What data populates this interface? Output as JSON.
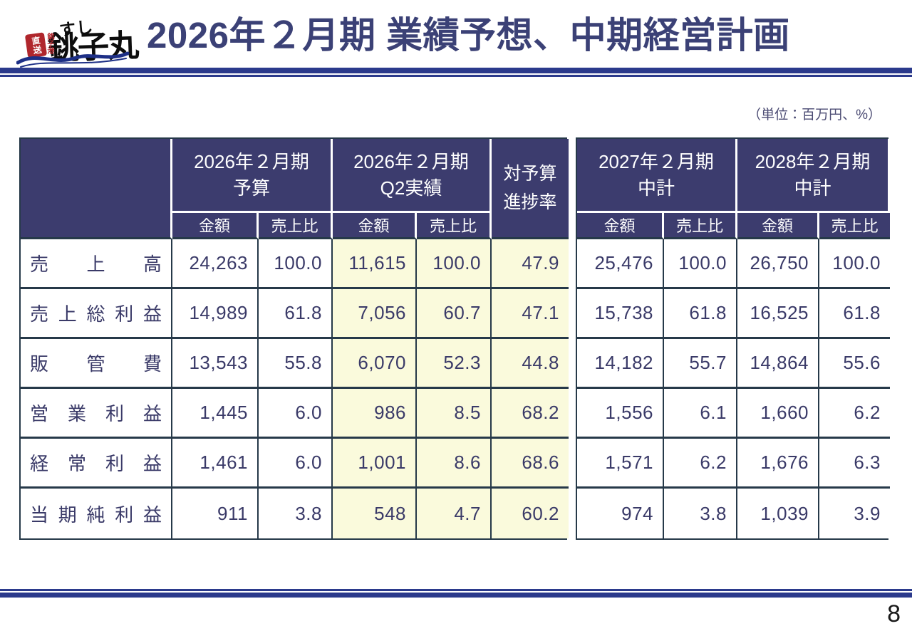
{
  "header": {
    "logo": {
      "sushi": "すし",
      "name": "銚子丸",
      "stamp_main": "直送",
      "stamp_side": "銚子港"
    },
    "title": "2026年２月期 業績予想、中期経営計画"
  },
  "unit_note": "（単位：百万円、%）",
  "page_number": "8",
  "colors": {
    "header_bg": "#3C3C6E",
    "highlight_yellow": "#FAFADC",
    "border_dark": "#263949",
    "line_navy": "#2B3A8C",
    "text_navy": "#3A3A68",
    "title_navy": "#3B4176",
    "stamp_red": "#B0262C"
  },
  "chart_data": {
    "type": "table",
    "title": "2026年２月期 業績予想、中期経営計画",
    "unit": "百万円、%",
    "left_groups": [
      {
        "key": "fy2026-budget",
        "line1": "2026年２月期",
        "line2": "予算",
        "subs": [
          "金額",
          "売上比"
        ]
      },
      {
        "key": "fy2026-q2",
        "line1": "2026年２月期",
        "line2": "Q2実績",
        "subs": [
          "金額",
          "売上比"
        ]
      },
      {
        "key": "progress",
        "line1": "対予算",
        "line2": "進捗率",
        "merged": true
      }
    ],
    "right_groups": [
      {
        "key": "fy2027-plan",
        "line1": "2027年２月期",
        "line2": "中計",
        "subs": [
          "金額",
          "売上比"
        ]
      },
      {
        "key": "fy2028-plan",
        "line1": "2028年２月期",
        "line2": "中計",
        "subs": [
          "金額",
          "売上比"
        ]
      }
    ],
    "left_col_keys": [
      "fy2026-budget-amount",
      "fy2026-budget-ratio",
      "fy2026-q2-amount",
      "fy2026-q2-ratio",
      "progress-rate"
    ],
    "right_col_keys": [
      "fy2027-amount",
      "fy2027-ratio",
      "fy2028-amount",
      "fy2028-ratio"
    ],
    "highlight_left_cols": [
      2,
      3,
      4
    ],
    "rows": [
      {
        "key": "net-sales",
        "label": "売上高",
        "left": [
          "24,263",
          "100.0",
          "11,615",
          "100.0",
          "47.9"
        ],
        "right": [
          "25,476",
          "100.0",
          "26,750",
          "100.0"
        ]
      },
      {
        "key": "gross-profit",
        "label": "売上総利益",
        "left": [
          "14,989",
          "61.8",
          "7,056",
          "60.7",
          "47.1"
        ],
        "right": [
          "15,738",
          "61.8",
          "16,525",
          "61.8"
        ]
      },
      {
        "key": "sga-expenses",
        "label": "販管費",
        "left": [
          "13,543",
          "55.8",
          "6,070",
          "52.3",
          "44.8"
        ],
        "right": [
          "14,182",
          "55.7",
          "14,864",
          "55.6"
        ]
      },
      {
        "key": "operating-profit",
        "label": "営業利益",
        "left": [
          "1,445",
          "6.0",
          "986",
          "8.5",
          "68.2"
        ],
        "right": [
          "1,556",
          "6.1",
          "1,660",
          "6.2"
        ]
      },
      {
        "key": "ordinary-profit",
        "label": "経常利益",
        "left": [
          "1,461",
          "6.0",
          "1,001",
          "8.6",
          "68.6"
        ],
        "right": [
          "1,571",
          "6.2",
          "1,676",
          "6.3"
        ]
      },
      {
        "key": "net-income",
        "label": "当期純利益",
        "left": [
          "911",
          "3.8",
          "548",
          "4.7",
          "60.2"
        ],
        "right": [
          "974",
          "3.8",
          "1,039",
          "3.9"
        ]
      }
    ]
  }
}
